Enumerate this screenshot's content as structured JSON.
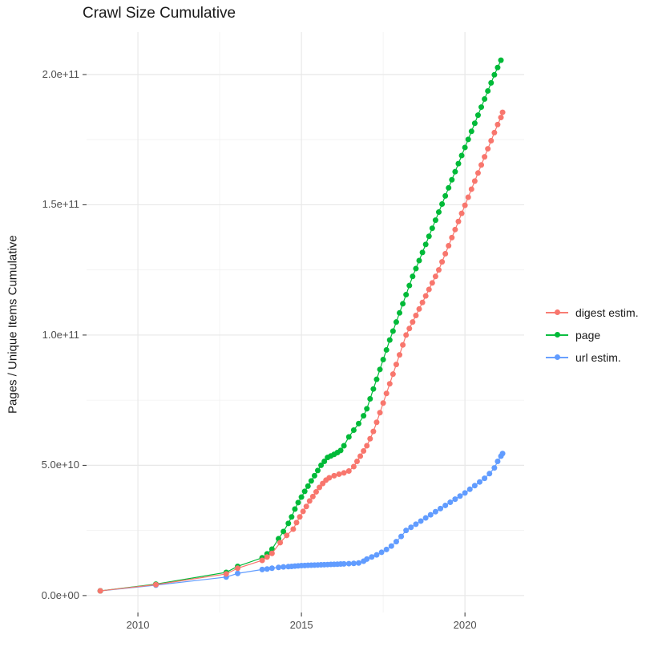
{
  "title": "Crawl Size Cumulative",
  "background_color": "#FFFFFF",
  "grid_major_color": "#E8E8E8",
  "grid_minor_color": "#F1F1F1",
  "tick_mark_color": "#333333",
  "tick_label_color": "#4d4d4d",
  "chart_data": {
    "type": "scatter",
    "title": "Crawl Size Cumulative",
    "xlabel": "",
    "ylabel": "Pages / Unique Items Cumulative",
    "legend_position": "right",
    "grid": true,
    "xlim": [
      2008.43,
      2021.81
    ],
    "ylim": [
      -6500000000.0,
      216300000000.0
    ],
    "x_ticks": [
      2010,
      2015,
      2020
    ],
    "x_tick_labels": [
      "2010",
      "2015",
      "2020"
    ],
    "x_minor_ticks": [
      2012.5,
      2017.5
    ],
    "y_ticks": [
      0,
      50000000000.0,
      100000000000.0,
      150000000000.0,
      200000000000.0
    ],
    "y_tick_labels": [
      "0.0e+00",
      "5.0e+10",
      "1.0e+11",
      "1.5e+11",
      "2.0e+11"
    ],
    "y_minor_ticks": [
      25000000000.0,
      75000000000.0,
      125000000000.0,
      175000000000.0
    ],
    "series": [
      {
        "name": "digest estim.",
        "color": "#F8766D",
        "points": [
          [
            2008.85,
            1800000000.0
          ],
          [
            2010.55,
            4200000000.0
          ],
          [
            2012.7,
            8300000000.0
          ],
          [
            2013.05,
            10500000000.0
          ],
          [
            2013.8,
            13500000000.0
          ],
          [
            2013.95,
            14800000000.0
          ],
          [
            2014.1,
            16200000000.0
          ],
          [
            2014.35,
            20300000000.0
          ],
          [
            2014.55,
            23100000000.0
          ],
          [
            2014.75,
            25500000000.0
          ],
          [
            2014.85,
            28000000000.0
          ],
          [
            2014.95,
            30200000000.0
          ],
          [
            2015.05,
            32300000000.0
          ],
          [
            2015.15,
            34200000000.0
          ],
          [
            2015.25,
            36300000000.0
          ],
          [
            2015.35,
            38000000000.0
          ],
          [
            2015.45,
            39800000000.0
          ],
          [
            2015.55,
            41500000000.0
          ],
          [
            2015.65,
            43000000000.0
          ],
          [
            2015.75,
            44300000000.0
          ],
          [
            2015.85,
            45200000000.0
          ],
          [
            2016.0,
            46000000000.0
          ],
          [
            2016.15,
            46600000000.0
          ],
          [
            2016.3,
            47100000000.0
          ],
          [
            2016.45,
            47800000000.0
          ],
          [
            2016.6,
            49500000000.0
          ],
          [
            2016.7,
            51500000000.0
          ],
          [
            2016.8,
            53500000000.0
          ],
          [
            2016.9,
            55500000000.0
          ],
          [
            2017.0,
            57500000000.0
          ],
          [
            2017.1,
            60200000000.0
          ],
          [
            2017.2,
            63000000000.0
          ],
          [
            2017.3,
            66500000000.0
          ],
          [
            2017.4,
            70200000000.0
          ],
          [
            2017.5,
            73900000000.0
          ],
          [
            2017.6,
            77600000000.0
          ],
          [
            2017.7,
            81300000000.0
          ],
          [
            2017.8,
            85000000000.0
          ],
          [
            2017.9,
            88700000000.0
          ],
          [
            2018.0,
            92400000000.0
          ],
          [
            2018.1,
            96200000000.0
          ],
          [
            2018.2,
            100000000000.0
          ],
          [
            2018.3,
            102500000000.0
          ],
          [
            2018.4,
            105000000000.0
          ],
          [
            2018.5,
            107500000000.0
          ],
          [
            2018.6,
            110000000000.0
          ],
          [
            2018.7,
            112500000000.0
          ],
          [
            2018.8,
            115000000000.0
          ],
          [
            2018.9,
            117500000000.0
          ],
          [
            2019.0,
            120000000000.0
          ],
          [
            2019.1,
            122500000000.0
          ],
          [
            2019.2,
            125000000000.0
          ],
          [
            2019.3,
            128100000000.0
          ],
          [
            2019.4,
            131200000000.0
          ],
          [
            2019.5,
            134300000000.0
          ],
          [
            2019.6,
            137400000000.0
          ],
          [
            2019.7,
            140500000000.0
          ],
          [
            2019.8,
            143600000000.0
          ],
          [
            2019.9,
            146700000000.0
          ],
          [
            2020.0,
            149800000000.0
          ],
          [
            2020.1,
            152900000000.0
          ],
          [
            2020.2,
            156000000000.0
          ],
          [
            2020.3,
            159100000000.0
          ],
          [
            2020.4,
            162200000000.0
          ],
          [
            2020.5,
            165300000000.0
          ],
          [
            2020.6,
            168400000000.0
          ],
          [
            2020.7,
            171500000000.0
          ],
          [
            2020.8,
            174600000000.0
          ],
          [
            2020.9,
            177700000000.0
          ],
          [
            2021.0,
            180800000000.0
          ],
          [
            2021.1,
            183500000000.0
          ],
          [
            2021.15,
            185500000000.0
          ]
        ]
      },
      {
        "name": "page",
        "color": "#00BA38",
        "points": [
          [
            2008.85,
            1800000000.0
          ],
          [
            2010.55,
            4400000000.0
          ],
          [
            2012.7,
            8900000000.0
          ],
          [
            2013.05,
            11200000000.0
          ],
          [
            2013.8,
            14500000000.0
          ],
          [
            2013.95,
            16000000000.0
          ],
          [
            2014.1,
            17800000000.0
          ],
          [
            2014.3,
            21800000000.0
          ],
          [
            2014.45,
            24600000000.0
          ],
          [
            2014.6,
            27700000000.0
          ],
          [
            2014.7,
            30200000000.0
          ],
          [
            2014.8,
            33200000000.0
          ],
          [
            2014.9,
            35700000000.0
          ],
          [
            2015.0,
            37800000000.0
          ],
          [
            2015.1,
            40000000000.0
          ],
          [
            2015.2,
            42000000000.0
          ],
          [
            2015.3,
            44000000000.0
          ],
          [
            2015.4,
            46000000000.0
          ],
          [
            2015.5,
            48000000000.0
          ],
          [
            2015.6,
            50000000000.0
          ],
          [
            2015.7,
            51500000000.0
          ],
          [
            2015.8,
            53000000000.0
          ],
          [
            2015.9,
            53600000000.0
          ],
          [
            2016.0,
            54200000000.0
          ],
          [
            2016.1,
            54900000000.0
          ],
          [
            2016.2,
            55700000000.0
          ],
          [
            2016.3,
            57500000000.0
          ],
          [
            2016.45,
            60900000000.0
          ],
          [
            2016.6,
            63500000000.0
          ],
          [
            2016.75,
            66000000000.0
          ],
          [
            2016.9,
            69000000000.0
          ],
          [
            2017.0,
            71700000000.0
          ],
          [
            2017.1,
            75500000000.0
          ],
          [
            2017.2,
            79300000000.0
          ],
          [
            2017.3,
            83000000000.0
          ],
          [
            2017.4,
            86800000000.0
          ],
          [
            2017.5,
            90600000000.0
          ],
          [
            2017.6,
            94300000000.0
          ],
          [
            2017.7,
            98100000000.0
          ],
          [
            2017.8,
            101500000000.0
          ],
          [
            2017.9,
            105000000000.0
          ],
          [
            2018.0,
            108500000000.0
          ],
          [
            2018.1,
            112000000000.0
          ],
          [
            2018.2,
            115500000000.0
          ],
          [
            2018.3,
            119000000000.0
          ],
          [
            2018.4,
            122500000000.0
          ],
          [
            2018.5,
            125500000000.0
          ],
          [
            2018.6,
            128600000000.0
          ],
          [
            2018.7,
            131700000000.0
          ],
          [
            2018.8,
            134800000000.0
          ],
          [
            2018.9,
            137900000000.0
          ],
          [
            2019.0,
            141000000000.0
          ],
          [
            2019.1,
            144100000000.0
          ],
          [
            2019.2,
            147200000000.0
          ],
          [
            2019.3,
            150300000000.0
          ],
          [
            2019.4,
            153400000000.0
          ],
          [
            2019.5,
            156500000000.0
          ],
          [
            2019.6,
            159600000000.0
          ],
          [
            2019.7,
            162700000000.0
          ],
          [
            2019.8,
            165800000000.0
          ],
          [
            2019.9,
            168900000000.0
          ],
          [
            2020.0,
            172000000000.0
          ],
          [
            2020.1,
            175100000000.0
          ],
          [
            2020.2,
            178200000000.0
          ],
          [
            2020.3,
            181300000000.0
          ],
          [
            2020.4,
            184400000000.0
          ],
          [
            2020.5,
            187500000000.0
          ],
          [
            2020.6,
            190600000000.0
          ],
          [
            2020.7,
            193700000000.0
          ],
          [
            2020.8,
            196800000000.0
          ],
          [
            2020.9,
            199900000000.0
          ],
          [
            2021.0,
            202700000000.0
          ],
          [
            2021.1,
            205500000000.0
          ]
        ]
      },
      {
        "name": "url estim.",
        "color": "#619CFF",
        "points": [
          [
            2008.85,
            1800000000.0
          ],
          [
            2010.55,
            4000000000.0
          ],
          [
            2012.7,
            7100000000.0
          ],
          [
            2013.05,
            8500000000.0
          ],
          [
            2013.8,
            10000000000.0
          ],
          [
            2013.95,
            10200000000.0
          ],
          [
            2014.1,
            10500000000.0
          ],
          [
            2014.3,
            10800000000.0
          ],
          [
            2014.45,
            11000000000.0
          ],
          [
            2014.6,
            11100000000.0
          ],
          [
            2014.7,
            11200000000.0
          ],
          [
            2014.8,
            11300000000.0
          ],
          [
            2014.9,
            11400000000.0
          ],
          [
            2015.0,
            11500000000.0
          ],
          [
            2015.1,
            11550000000.0
          ],
          [
            2015.2,
            11600000000.0
          ],
          [
            2015.3,
            11650000000.0
          ],
          [
            2015.4,
            11700000000.0
          ],
          [
            2015.5,
            11750000000.0
          ],
          [
            2015.6,
            11800000000.0
          ],
          [
            2015.7,
            11850000000.0
          ],
          [
            2015.8,
            11900000000.0
          ],
          [
            2015.9,
            11950000000.0
          ],
          [
            2016.0,
            12000000000.0
          ],
          [
            2016.1,
            12050000000.0
          ],
          [
            2016.2,
            12100000000.0
          ],
          [
            2016.3,
            12150000000.0
          ],
          [
            2016.45,
            12250000000.0
          ],
          [
            2016.6,
            12350000000.0
          ],
          [
            2016.75,
            12500000000.0
          ],
          [
            2016.9,
            13200000000.0
          ],
          [
            2017.0,
            14000000000.0
          ],
          [
            2017.15,
            14800000000.0
          ],
          [
            2017.3,
            15600000000.0
          ],
          [
            2017.45,
            16600000000.0
          ],
          [
            2017.6,
            17700000000.0
          ],
          [
            2017.75,
            19000000000.0
          ],
          [
            2017.9,
            20700000000.0
          ],
          [
            2018.05,
            22700000000.0
          ],
          [
            2018.2,
            25000000000.0
          ],
          [
            2018.35,
            26200000000.0
          ],
          [
            2018.5,
            27400000000.0
          ],
          [
            2018.65,
            28600000000.0
          ],
          [
            2018.8,
            29800000000.0
          ],
          [
            2018.95,
            31000000000.0
          ],
          [
            2019.1,
            32200000000.0
          ],
          [
            2019.25,
            33400000000.0
          ],
          [
            2019.4,
            34600000000.0
          ],
          [
            2019.55,
            35800000000.0
          ],
          [
            2019.7,
            37000000000.0
          ],
          [
            2019.85,
            38200000000.0
          ],
          [
            2020.0,
            39400000000.0
          ],
          [
            2020.15,
            40800000000.0
          ],
          [
            2020.3,
            42200000000.0
          ],
          [
            2020.45,
            43600000000.0
          ],
          [
            2020.6,
            45000000000.0
          ],
          [
            2020.75,
            46800000000.0
          ],
          [
            2020.9,
            49000000000.0
          ],
          [
            2021.0,
            51500000000.0
          ],
          [
            2021.1,
            53500000000.0
          ],
          [
            2021.15,
            54500000000.0
          ]
        ]
      }
    ]
  }
}
